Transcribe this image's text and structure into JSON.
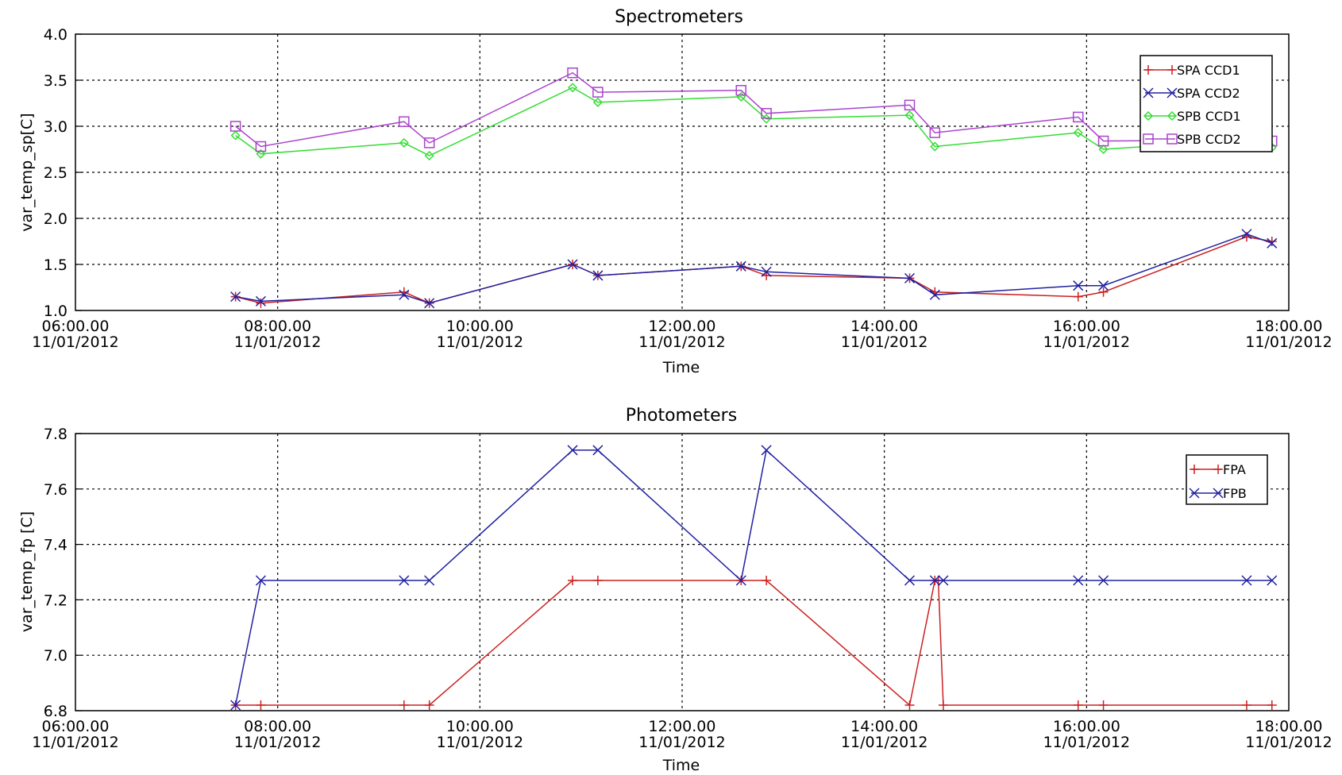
{
  "chart_data": [
    {
      "type": "line",
      "title": "Spectrometers",
      "xlabel": "Time",
      "ylabel": "var_temp_sp[C]",
      "xlim": [
        "06:00.00 11/01/2012",
        "18:00.00 11/01/2012"
      ],
      "ylim": [
        1.0,
        4.0
      ],
      "grid": true,
      "legend_position": "top-right",
      "x_ticks": [
        {
          "time": "06:00.00",
          "date": "11/01/2012"
        },
        {
          "time": "08:00.00",
          "date": "11/01/2012"
        },
        {
          "time": "10:00.00",
          "date": "11/01/2012"
        },
        {
          "time": "12:00.00",
          "date": "11/01/2012"
        },
        {
          "time": "14:00.00",
          "date": "11/01/2012"
        },
        {
          "time": "16:00.00",
          "date": "11/01/2012"
        },
        {
          "time": "18:00.00",
          "date": "11/01/2012"
        }
      ],
      "y_ticks": [
        "1.0",
        "1.5",
        "2.0",
        "2.5",
        "3.0",
        "3.5",
        "4.0"
      ],
      "x": [
        "07:35",
        "07:50",
        "09:15",
        "09:30",
        "10:55",
        "11:10",
        "12:35",
        "12:50",
        "14:15",
        "14:30",
        "15:55",
        "16:10",
        "17:35",
        "17:50"
      ],
      "series": [
        {
          "name": "SPA CCD1",
          "color": "#cc2020",
          "marker": "plus",
          "values": [
            1.15,
            1.08,
            1.2,
            1.08,
            1.5,
            1.38,
            1.48,
            1.38,
            1.35,
            1.2,
            1.15,
            1.2,
            1.8,
            1.75
          ]
        },
        {
          "name": "SPA CCD2",
          "color": "#2020a0",
          "marker": "x",
          "values": [
            1.15,
            1.1,
            1.17,
            1.08,
            1.5,
            1.38,
            1.48,
            1.42,
            1.35,
            1.17,
            1.27,
            1.27,
            1.83,
            1.73
          ]
        },
        {
          "name": "SPB CCD1",
          "color": "#33dd33",
          "marker": "diamond",
          "values": [
            2.9,
            2.7,
            2.82,
            2.68,
            3.42,
            3.26,
            3.32,
            3.08,
            3.12,
            2.78,
            2.93,
            2.75,
            2.85,
            2.77
          ]
        },
        {
          "name": "SPB CCD2",
          "color": "#aa44cc",
          "marker": "square",
          "values": [
            3.0,
            2.78,
            3.05,
            2.82,
            3.58,
            3.37,
            3.39,
            3.14,
            3.23,
            2.93,
            3.1,
            2.84,
            2.85,
            2.84
          ]
        }
      ]
    },
    {
      "type": "line",
      "title": "Photometers",
      "xlabel": "Time",
      "ylabel": "var_temp_fp [C]",
      "xlim": [
        "06:00.00 11/01/2012",
        "18:00.00 11/01/2012"
      ],
      "ylim": [
        6.8,
        7.8
      ],
      "grid": true,
      "legend_position": "top-right",
      "x_ticks": [
        {
          "time": "06:00.00",
          "date": "11/01/2012"
        },
        {
          "time": "08:00.00",
          "date": "11/01/2012"
        },
        {
          "time": "10:00.00",
          "date": "11/01/2012"
        },
        {
          "time": "12:00.00",
          "date": "11/01/2012"
        },
        {
          "time": "14:00.00",
          "date": "11/01/2012"
        },
        {
          "time": "16:00.00",
          "date": "11/01/2012"
        },
        {
          "time": "18:00.00",
          "date": "11/01/2012"
        }
      ],
      "y_ticks": [
        "6.8",
        "7.0",
        "7.2",
        "7.4",
        "7.6",
        "7.8"
      ],
      "series": [
        {
          "name": "FPA",
          "color": "#cc2020",
          "marker": "plus",
          "x": [
            "07:35",
            "07:50",
            "09:15",
            "09:30",
            "10:55",
            "11:10",
            "12:35",
            "12:50",
            "14:15",
            "14:30",
            "14:32",
            "14:35",
            "15:55",
            "16:10",
            "17:35",
            "17:50"
          ],
          "values": [
            6.82,
            6.82,
            6.82,
            6.82,
            7.27,
            7.27,
            7.27,
            7.27,
            6.82,
            7.27,
            7.27,
            6.82,
            6.82,
            6.82,
            6.82,
            6.82
          ]
        },
        {
          "name": "FPB",
          "color": "#2020a0",
          "marker": "x",
          "x": [
            "07:35",
            "07:50",
            "09:15",
            "09:30",
            "10:55",
            "11:10",
            "12:35",
            "12:50",
            "14:15",
            "14:30",
            "14:35",
            "15:55",
            "16:10",
            "17:35",
            "17:50"
          ],
          "values": [
            6.82,
            7.27,
            7.27,
            7.27,
            7.74,
            7.74,
            7.27,
            7.74,
            7.27,
            7.27,
            7.27,
            7.27,
            7.27,
            7.27,
            7.27
          ]
        }
      ]
    }
  ]
}
